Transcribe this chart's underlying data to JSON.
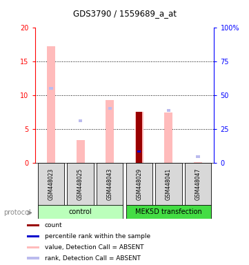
{
  "title": "GDS3790 / 1559689_a_at",
  "samples": [
    "GSM448023",
    "GSM448025",
    "GSM448043",
    "GSM448029",
    "GSM448041",
    "GSM448047"
  ],
  "value_bars": [
    17.3,
    3.4,
    9.3,
    7.6,
    7.5,
    0.15
  ],
  "rank_bars": [
    11.0,
    6.2,
    8.1,
    null,
    7.8,
    0.9
  ],
  "count_bars": [
    null,
    null,
    null,
    7.6,
    null,
    null
  ],
  "percentile_bars": [
    null,
    null,
    null,
    8.4,
    null,
    null
  ],
  "value_color": "#ffbbbb",
  "rank_color": "#bbbbee",
  "count_color": "#990000",
  "percentile_color": "#0000cc",
  "ylim_left": [
    0,
    20
  ],
  "ylim_right": [
    0,
    100
  ],
  "yticks_left": [
    0,
    5,
    10,
    15,
    20
  ],
  "ytick_labels_left": [
    "0",
    "5",
    "10",
    "15",
    "20"
  ],
  "yticks_right": [
    0,
    25,
    50,
    75,
    100
  ],
  "ytick_labels_right": [
    "0",
    "25",
    "50",
    "75",
    "100%"
  ],
  "legend_items": [
    {
      "label": "count",
      "color": "#990000"
    },
    {
      "label": "percentile rank within the sample",
      "color": "#0000cc"
    },
    {
      "label": "value, Detection Call = ABSENT",
      "color": "#ffbbbb"
    },
    {
      "label": "rank, Detection Call = ABSENT",
      "color": "#bbbbee"
    }
  ],
  "protocol_label": "protocol",
  "control_color": "#bbffbb",
  "mek_color": "#44dd44",
  "label_bg_color": "#d8d8d8"
}
